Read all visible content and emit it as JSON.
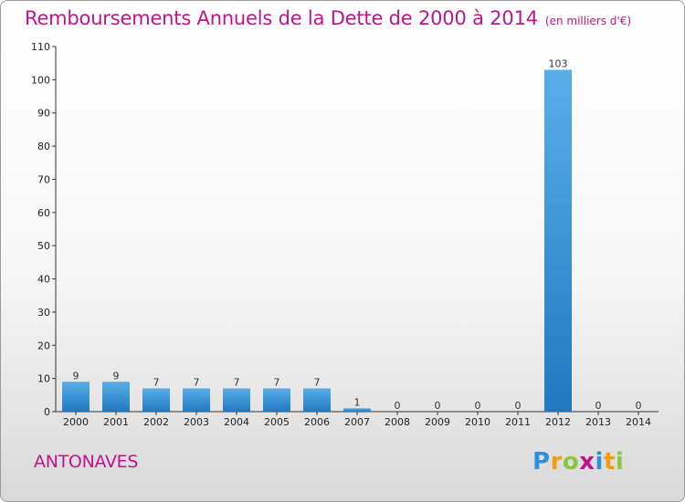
{
  "title": "Remboursements Annuels de la Dette de 2000 à 2014",
  "unit_label": "(en milliers d'€)",
  "commune": "ANTONAVES",
  "logo": {
    "text": "Proxiti",
    "letters": [
      {
        "ch": "P",
        "color": "#2f8fd8"
      },
      {
        "ch": "r",
        "color": "#f39c12"
      },
      {
        "ch": "o",
        "color": "#8cc63f"
      },
      {
        "ch": "x",
        "color": "#c0148c"
      },
      {
        "ch": "i",
        "color": "#2f8fd8"
      },
      {
        "ch": "t",
        "color": "#f39c12"
      },
      {
        "ch": "i",
        "color": "#8cc63f"
      }
    ]
  },
  "colors": {
    "title": "#c0148c",
    "bar_light": "#5aaee8",
    "bar_dark": "#2178c0"
  },
  "chart_data": {
    "type": "bar",
    "categories": [
      "2000",
      "2001",
      "2002",
      "2003",
      "2004",
      "2005",
      "2006",
      "2007",
      "2008",
      "2009",
      "2010",
      "2011",
      "2012",
      "2013",
      "2014"
    ],
    "values": [
      9,
      9,
      7,
      7,
      7,
      7,
      7,
      1,
      0,
      0,
      0,
      0,
      103,
      0,
      0
    ],
    "ylim": [
      0,
      110
    ],
    "yticks": [
      0,
      10,
      20,
      30,
      40,
      50,
      60,
      70,
      80,
      90,
      100,
      110
    ],
    "grid": false,
    "legend": "none"
  }
}
